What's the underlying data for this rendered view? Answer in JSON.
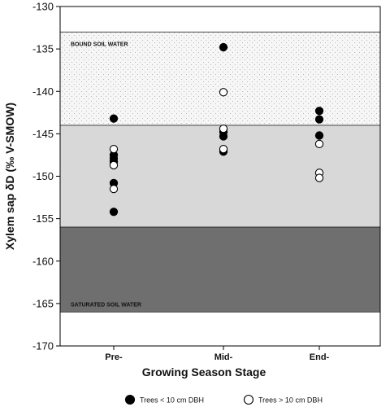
{
  "chart_data": {
    "type": "scatter",
    "title": "",
    "xlabel": "Growing Season Stage",
    "ylabel": "Xylem sap δD (‰ V-SMOW)",
    "categories": [
      "Pre-",
      "Mid-",
      "End-"
    ],
    "ylim": [
      -170,
      -130
    ],
    "yticks": [
      -130,
      -135,
      -140,
      -145,
      -150,
      -155,
      -160,
      -165,
      -170
    ],
    "grid": false,
    "legend_position": "bottom",
    "bands": [
      {
        "label": "BOUND SOIL WATER",
        "y_from": -144,
        "y_to": -133,
        "color": "#f4f4f4",
        "pattern": "dots"
      },
      {
        "label": "",
        "y_from": -156,
        "y_to": -144,
        "color": "#d8d8d8",
        "pattern": "none"
      },
      {
        "label": "SATURATED SOIL WATER",
        "y_from": -166,
        "y_to": -156,
        "color": "#6f6f6f",
        "pattern": "none"
      }
    ],
    "series": [
      {
        "name": "Trees < 10 cm DBH",
        "marker": "filled",
        "color": "#000000",
        "points": [
          {
            "x": "Pre-",
            "y": -143.2
          },
          {
            "x": "Pre-",
            "y": -147.5
          },
          {
            "x": "Pre-",
            "y": -147.9
          },
          {
            "x": "Pre-",
            "y": -148.3
          },
          {
            "x": "Pre-",
            "y": -150.8
          },
          {
            "x": "Pre-",
            "y": -154.2
          },
          {
            "x": "Mid-",
            "y": -134.8
          },
          {
            "x": "Mid-",
            "y": -144.8
          },
          {
            "x": "Mid-",
            "y": -145.3
          },
          {
            "x": "Mid-",
            "y": -147.1
          },
          {
            "x": "End-",
            "y": -142.3
          },
          {
            "x": "End-",
            "y": -143.3
          },
          {
            "x": "End-",
            "y": -145.2
          }
        ]
      },
      {
        "name": "Trees > 10 cm DBH",
        "marker": "open",
        "color": "#000000",
        "points": [
          {
            "x": "Pre-",
            "y": -146.8
          },
          {
            "x": "Pre-",
            "y": -148.7
          },
          {
            "x": "Pre-",
            "y": -151.5
          },
          {
            "x": "Mid-",
            "y": -140.1
          },
          {
            "x": "Mid-",
            "y": -144.4
          },
          {
            "x": "Mid-",
            "y": -146.8
          },
          {
            "x": "End-",
            "y": -146.2
          },
          {
            "x": "End-",
            "y": -149.6
          },
          {
            "x": "End-",
            "y": -150.2
          }
        ]
      }
    ]
  }
}
